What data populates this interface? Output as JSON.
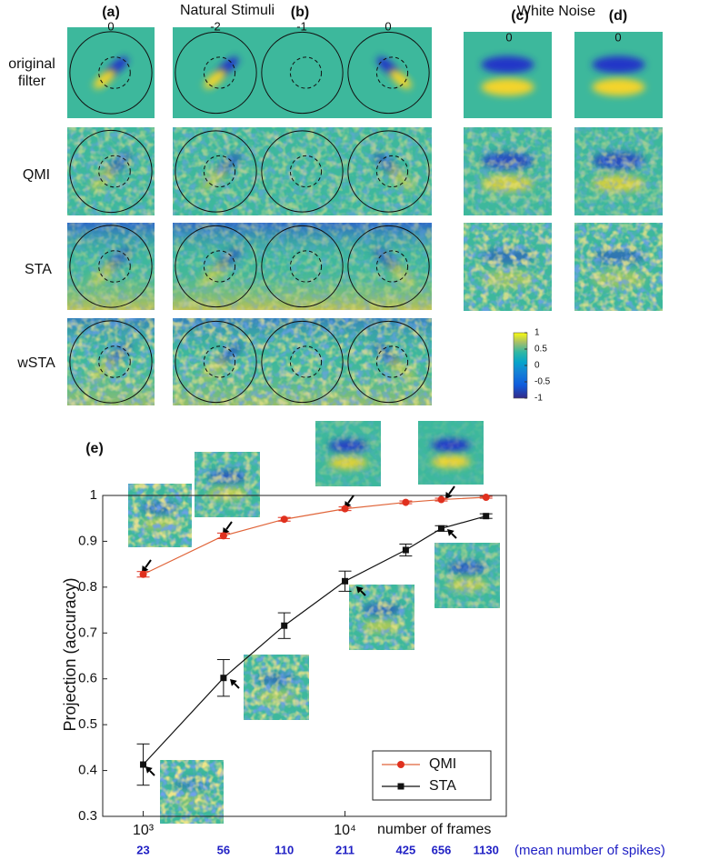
{
  "figure": {
    "panel_labels": {
      "a": "(a)",
      "b": "(b)",
      "c": "(c)",
      "d": "(d)"
    },
    "natural_title": "Natural Stimuli",
    "white_title": "White Noise",
    "column_values": [
      0,
      -2,
      -1,
      0,
      0,
      0
    ],
    "row_labels": [
      "original filter",
      "QMI",
      "STA",
      "wSTA"
    ],
    "colorbar": {
      "ylim": [
        -1,
        1
      ],
      "yticks": [
        1,
        0.5,
        0,
        -0.5,
        -1
      ]
    }
  },
  "chart_data": {
    "type": "line",
    "panel_label": "(e)",
    "xscale": "log",
    "x": [
      1000,
      2500,
      5000,
      10000,
      20000,
      30000,
      50000
    ],
    "xlim": [
      630,
      63000
    ],
    "xticks": [
      {
        "value": 1000,
        "label": "10³"
      },
      {
        "value": 10000,
        "label": "10⁴"
      }
    ],
    "xlabel": "number of frames",
    "secondary_x_labels": [
      23,
      56,
      110,
      211,
      425,
      656,
      1130
    ],
    "secondary_xlabel": "(mean number of spikes)",
    "ylabel": "Projection (accuracy)",
    "ylim": [
      0.3,
      1
    ],
    "yticks": [
      0.3,
      0.4,
      0.5,
      0.6,
      0.7,
      0.8,
      0.9,
      1
    ],
    "legend": "lower right",
    "series": [
      {
        "name": "QMI",
        "color": "#e0301e",
        "line_color": "#e0653a",
        "marker": "circle",
        "values": [
          0.828,
          0.912,
          0.948,
          0.971,
          0.985,
          0.991,
          0.996
        ],
        "errors": [
          0.006,
          0.006,
          0.004,
          0.004,
          0.003,
          0.003,
          0.002
        ]
      },
      {
        "name": "STA",
        "color": "#111111",
        "line_color": "#111111",
        "marker": "square",
        "values": [
          0.413,
          0.602,
          0.716,
          0.813,
          0.881,
          0.928,
          0.955
        ],
        "errors": [
          0.045,
          0.04,
          0.028,
          0.022,
          0.013,
          0.006,
          0.005
        ]
      }
    ]
  }
}
